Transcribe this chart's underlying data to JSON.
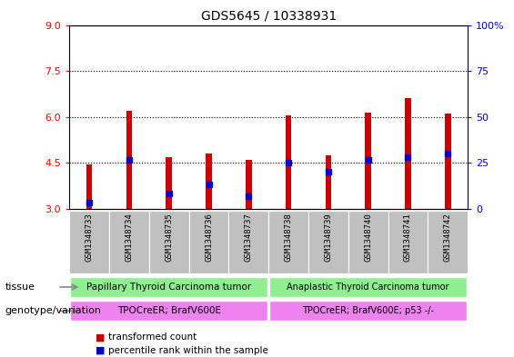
{
  "title": "GDS5645 / 10338931",
  "samples": [
    "GSM1348733",
    "GSM1348734",
    "GSM1348735",
    "GSM1348736",
    "GSM1348737",
    "GSM1348738",
    "GSM1348739",
    "GSM1348740",
    "GSM1348741",
    "GSM1348742"
  ],
  "bar_bottom": 3.0,
  "bar_tops": [
    4.45,
    6.2,
    4.7,
    4.8,
    4.6,
    6.05,
    4.75,
    6.15,
    6.6,
    6.1
  ],
  "blue_positions": [
    3.2,
    4.6,
    3.5,
    3.8,
    3.4,
    4.5,
    4.2,
    4.6,
    4.7,
    4.8
  ],
  "ylim_left": [
    3,
    9
  ],
  "ylim_right": [
    0,
    100
  ],
  "yticks_left": [
    3,
    4.5,
    6,
    7.5,
    9
  ],
  "yticks_right": [
    0,
    25,
    50,
    75,
    100
  ],
  "bar_color": "#cc0000",
  "blue_color": "#0000cc",
  "bar_width": 0.15,
  "tissue_groups": [
    {
      "label": "Papillary Thyroid Carcinoma tumor",
      "start": 0,
      "end": 5,
      "color": "#90ee90"
    },
    {
      "label": "Anaplastic Thyroid Carcinoma tumor",
      "start": 5,
      "end": 10,
      "color": "#90ee90"
    }
  ],
  "genotype_groups": [
    {
      "label": "TPOCreER; BrafV600E",
      "start": 0,
      "end": 5,
      "color": "#ee82ee"
    },
    {
      "label": "TPOCreER; BrafV600E; p53 -/-",
      "start": 5,
      "end": 10,
      "color": "#ee82ee"
    }
  ],
  "tissue_label": "tissue",
  "genotype_label": "genotype/variation",
  "legend_items": [
    {
      "color": "#cc0000",
      "label": "transformed count"
    },
    {
      "color": "#0000cc",
      "label": "percentile rank within the sample"
    }
  ],
  "plot_bg_color": "#ffffff",
  "xticklabel_bg": "#c0c0c0",
  "right_ytick_labels": [
    "0",
    "25",
    "50",
    "75",
    "100%"
  ]
}
